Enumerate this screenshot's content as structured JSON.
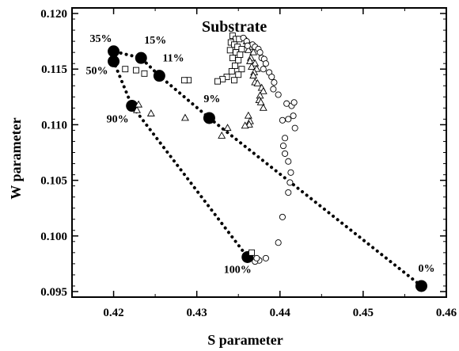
{
  "chart_data": {
    "type": "scatter",
    "title": "Substrate",
    "xlabel": "S parameter",
    "ylabel": "W parameter",
    "xlim": [
      0.415,
      0.46
    ],
    "ylim": [
      0.0945,
      0.1205
    ],
    "x_ticks": [
      0.42,
      0.43,
      0.44,
      0.45,
      0.46
    ],
    "x_tick_labels": [
      "0.42",
      "0.43",
      "0.44",
      "0.45",
      "0.46"
    ],
    "y_ticks": [
      0.095,
      0.1,
      0.105,
      0.11,
      0.115,
      0.12
    ],
    "y_tick_labels": [
      "0.095",
      "0.100",
      "0.105",
      "0.110",
      "0.115",
      "0.120"
    ],
    "grid": false,
    "series": [
      {
        "marker": "filled-circle",
        "color": "#000000",
        "points": [
          {
            "x": 0.457,
            "y": 0.0955,
            "label": "0%"
          },
          {
            "x": 0.4315,
            "y": 0.1106,
            "label": "9%"
          },
          {
            "x": 0.4255,
            "y": 0.1144,
            "label": "11%"
          },
          {
            "x": 0.4233,
            "y": 0.116,
            "label": "15%"
          },
          {
            "x": 0.42,
            "y": 0.1166,
            "label": "35%"
          },
          {
            "x": 0.42,
            "y": 0.1157,
            "label": "50%"
          },
          {
            "x": 0.4222,
            "y": 0.1117,
            "label": "90%"
          },
          {
            "x": 0.4361,
            "y": 0.0981,
            "label": "100%"
          }
        ]
      },
      {
        "marker": "open-square",
        "color": "#000000",
        "points": [
          [
            0.4343,
            0.118
          ],
          [
            0.4347,
            0.1177
          ],
          [
            0.4351,
            0.1177
          ],
          [
            0.4341,
            0.1174
          ],
          [
            0.4345,
            0.1172
          ],
          [
            0.4349,
            0.117
          ],
          [
            0.4354,
            0.1168
          ],
          [
            0.434,
            0.1167
          ],
          [
            0.4347,
            0.1165
          ],
          [
            0.4352,
            0.1163
          ],
          [
            0.4343,
            0.116
          ],
          [
            0.435,
            0.1158
          ],
          [
            0.4346,
            0.1153
          ],
          [
            0.4354,
            0.115
          ],
          [
            0.4342,
            0.1148
          ],
          [
            0.435,
            0.1145
          ],
          [
            0.4336,
            0.1143
          ],
          [
            0.4345,
            0.114
          ],
          [
            0.4331,
            0.1141
          ],
          [
            0.4325,
            0.1139
          ],
          [
            0.429,
            0.114
          ],
          [
            0.4285,
            0.114
          ],
          [
            0.4237,
            0.1146
          ],
          [
            0.4227,
            0.1149
          ],
          [
            0.4214,
            0.115
          ],
          [
            0.4366,
            0.0985
          ]
        ]
      },
      {
        "marker": "open-triangle",
        "color": "#000000",
        "points": [
          [
            0.436,
            0.1175
          ],
          [
            0.4363,
            0.1172
          ],
          [
            0.4366,
            0.117
          ],
          [
            0.4362,
            0.1167
          ],
          [
            0.4368,
            0.1165
          ],
          [
            0.4365,
            0.116
          ],
          [
            0.4364,
            0.1157
          ],
          [
            0.437,
            0.1155
          ],
          [
            0.4366,
            0.1152
          ],
          [
            0.4372,
            0.115
          ],
          [
            0.4369,
            0.1147
          ],
          [
            0.4368,
            0.1144
          ],
          [
            0.437,
            0.1138
          ],
          [
            0.4373,
            0.1137
          ],
          [
            0.4378,
            0.1133
          ],
          [
            0.438,
            0.113
          ],
          [
            0.4376,
            0.1126
          ],
          [
            0.4375,
            0.1122
          ],
          [
            0.4377,
            0.112
          ],
          [
            0.438,
            0.1115
          ],
          [
            0.4362,
            0.1108
          ],
          [
            0.4364,
            0.1103
          ],
          [
            0.4363,
            0.11
          ],
          [
            0.4358,
            0.1099
          ],
          [
            0.4337,
            0.1097
          ],
          [
            0.433,
            0.109
          ],
          [
            0.4286,
            0.1106
          ],
          [
            0.4245,
            0.111
          ],
          [
            0.4228,
            0.1113
          ],
          [
            0.423,
            0.1118
          ]
        ]
      },
      {
        "marker": "open-circle",
        "color": "#000000",
        "points": [
          [
            0.4356,
            0.1178
          ],
          [
            0.436,
            0.1175
          ],
          [
            0.4367,
            0.1172
          ],
          [
            0.4361,
            0.1171
          ],
          [
            0.437,
            0.117
          ],
          [
            0.4374,
            0.1168
          ],
          [
            0.4376,
            0.1165
          ],
          [
            0.4378,
            0.116
          ],
          [
            0.4381,
            0.1159
          ],
          [
            0.4383,
            0.1155
          ],
          [
            0.438,
            0.115
          ],
          [
            0.4387,
            0.1147
          ],
          [
            0.439,
            0.1143
          ],
          [
            0.4393,
            0.1138
          ],
          [
            0.4392,
            0.1132
          ],
          [
            0.4398,
            0.1127
          ],
          [
            0.4408,
            0.1119
          ],
          [
            0.4414,
            0.1117
          ],
          [
            0.4417,
            0.112
          ],
          [
            0.4416,
            0.1108
          ],
          [
            0.441,
            0.1105
          ],
          [
            0.4403,
            0.1104
          ],
          [
            0.4418,
            0.1097
          ],
          [
            0.4406,
            0.1088
          ],
          [
            0.4404,
            0.1081
          ],
          [
            0.4406,
            0.1074
          ],
          [
            0.441,
            0.1067
          ],
          [
            0.4413,
            0.1057
          ],
          [
            0.4412,
            0.1048
          ],
          [
            0.441,
            0.1039
          ],
          [
            0.4403,
            0.1017
          ],
          [
            0.4398,
            0.0994
          ],
          [
            0.4383,
            0.098
          ],
          [
            0.4375,
            0.0978
          ],
          [
            0.437,
            0.0977
          ],
          [
            0.4372,
            0.098
          ]
        ]
      }
    ],
    "dotted_line": [
      [
        0.457,
        0.0955
      ],
      [
        0.4315,
        0.1106
      ],
      [
        0.4255,
        0.1144
      ],
      [
        0.4233,
        0.116
      ],
      [
        0.42,
        0.1166
      ],
      [
        0.42,
        0.1157
      ],
      [
        0.4222,
        0.1117
      ],
      [
        0.4361,
        0.0981
      ]
    ]
  }
}
